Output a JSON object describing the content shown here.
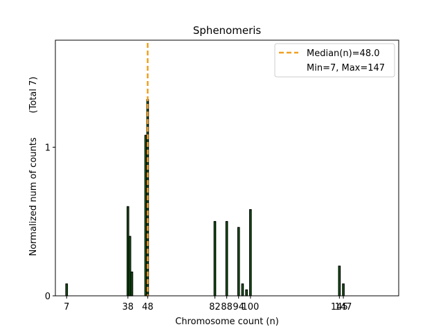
{
  "chart_data": {
    "type": "bar",
    "title": "Sphenomeris",
    "xlabel": "Chromosome count (n)",
    "ylabel": "Normalized num of counts",
    "ylabel_note": "(Total 7)",
    "xlim": [
      1.3,
      175
    ],
    "ylim": [
      0,
      1.72
    ],
    "xticks": [
      7,
      38,
      48,
      82,
      88,
      94,
      100,
      145,
      147
    ],
    "xtick_labels": [
      "7",
      "38",
      "48",
      "82",
      "88",
      "94",
      "100",
      "145",
      "147"
    ],
    "yticks": [
      0,
      1
    ],
    "ytick_labels": [
      "0",
      "1"
    ],
    "bars": [
      {
        "x": 7,
        "value": 0.08
      },
      {
        "x": 38,
        "value": 0.6
      },
      {
        "x": 39,
        "value": 0.4
      },
      {
        "x": 40,
        "value": 0.16
      },
      {
        "x": 47,
        "value": 1.08
      },
      {
        "x": 48,
        "value": 1.32
      },
      {
        "x": 82,
        "value": 0.5
      },
      {
        "x": 88,
        "value": 0.5
      },
      {
        "x": 94,
        "value": 0.46
      },
      {
        "x": 96,
        "value": 0.08
      },
      {
        "x": 98,
        "value": 0.04
      },
      {
        "x": 100,
        "value": 0.58
      },
      {
        "x": 145,
        "value": 0.2
      },
      {
        "x": 147,
        "value": 0.08
      }
    ],
    "bar_color": "#1a6b1a",
    "bar_edge_color": "#000000",
    "median": {
      "x": 48.0,
      "color": "#f0a020"
    },
    "legend": {
      "position": "top-right",
      "entries": [
        "Median(n)=48.0",
        "Min=7, Max=147"
      ]
    }
  }
}
